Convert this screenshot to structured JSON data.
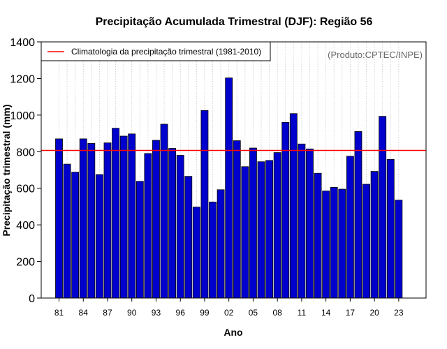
{
  "chart_data": {
    "type": "bar",
    "title": "Precipitação Acumulada Trimestral (DJF): Região 56",
    "xlabel": "Ano",
    "ylabel": "Precipitação trimestral (mm)",
    "credit": "(Produto:CPTEC/INPE)",
    "ylim": [
      0,
      1400
    ],
    "yticks": [
      0,
      200,
      400,
      600,
      800,
      1000,
      1200,
      1400
    ],
    "years": [
      1981,
      1982,
      1983,
      1984,
      1985,
      1986,
      1987,
      1988,
      1989,
      1990,
      1991,
      1992,
      1993,
      1994,
      1995,
      1996,
      1997,
      1998,
      1999,
      2000,
      2001,
      2002,
      2003,
      2004,
      2005,
      2006,
      2007,
      2008,
      2009,
      2010,
      2011,
      2012,
      2013,
      2014,
      2015,
      2016,
      2017,
      2018,
      2019,
      2020,
      2021,
      2022,
      2023
    ],
    "values": [
      870,
      732,
      688,
      870,
      845,
      675,
      848,
      928,
      885,
      897,
      638,
      790,
      862,
      950,
      818,
      780,
      665,
      497,
      1025,
      525,
      592,
      1203,
      860,
      718,
      820,
      745,
      752,
      795,
      960,
      1008,
      842,
      815,
      682,
      585,
      605,
      595,
      775,
      910,
      622,
      692,
      993,
      758,
      535
    ],
    "xtick_labels": [
      "81",
      "84",
      "87",
      "90",
      "93",
      "96",
      "99",
      "02",
      "05",
      "08",
      "11",
      "14",
      "17",
      "20",
      "23"
    ],
    "xtick_years": [
      1981,
      1984,
      1987,
      1990,
      1993,
      1996,
      1999,
      2002,
      2005,
      2008,
      2011,
      2014,
      2017,
      2020,
      2023
    ],
    "climatology": {
      "label": "Climatologia da precipitação trimestral (1981-2010)",
      "value": 807
    },
    "colors": {
      "bar_fill": "#0000cd",
      "bar_stroke": "#000000",
      "climatology_line": "#ff0000",
      "grid": "#c8c8c8"
    },
    "grid": true,
    "legend_position": "top-left"
  }
}
